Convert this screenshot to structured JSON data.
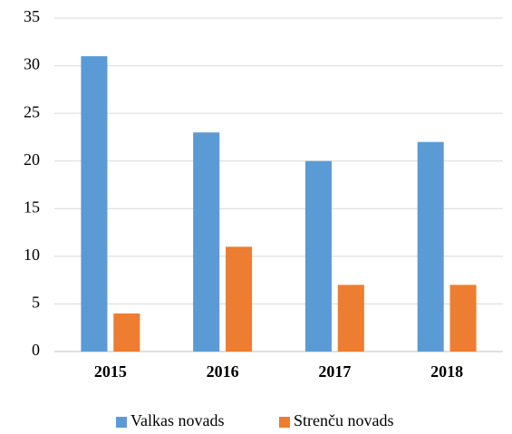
{
  "chart_data": {
    "type": "bar",
    "categories": [
      "2015",
      "2016",
      "2017",
      "2018"
    ],
    "series": [
      {
        "name": "Valkas novads",
        "color": "#5b9bd5",
        "values": [
          31,
          23,
          20,
          22
        ]
      },
      {
        "name": "Strenču novads",
        "color": "#ed7d31",
        "values": [
          4,
          11,
          7,
          7
        ]
      }
    ],
    "ylim": [
      0,
      35
    ],
    "yticks": [
      0,
      5,
      10,
      15,
      20,
      25,
      30,
      35
    ],
    "grid": true,
    "legend": "bottom"
  }
}
